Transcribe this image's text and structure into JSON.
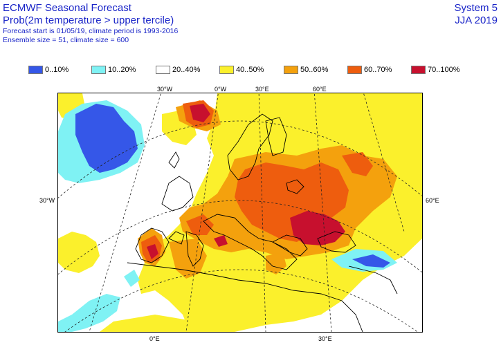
{
  "header": {
    "title": "ECMWF Seasonal Forecast",
    "subtitle": "Prob(2m temperature > upper tercile)",
    "info_line1": "Forecast start is 01/05/19, climate period is 1993-2016",
    "info_line2": "Ensemble size = 51, climate size = 600",
    "system": "System 5",
    "season": "JJA 2019"
  },
  "legend": [
    {
      "label": "0..10%",
      "color": "#3557e8"
    },
    {
      "label": "10..20%",
      "color": "#7ff2f4"
    },
    {
      "label": "20..40%",
      "color": "#ffffff"
    },
    {
      "label": "40..50%",
      "color": "#fbf02c"
    },
    {
      "label": "50..60%",
      "color": "#f4a10d"
    },
    {
      "label": "60..70%",
      "color": "#ee5d0e"
    },
    {
      "label": "70..100%",
      "color": "#c7102e"
    }
  ],
  "map": {
    "top_lon_labels": [
      "30°W",
      "0°W",
      "30°E",
      "60°E"
    ],
    "bottom_lon_labels": [
      "0°E",
      "30°E"
    ],
    "left_lat_label": "30°W",
    "right_lat_label": "60°E"
  }
}
